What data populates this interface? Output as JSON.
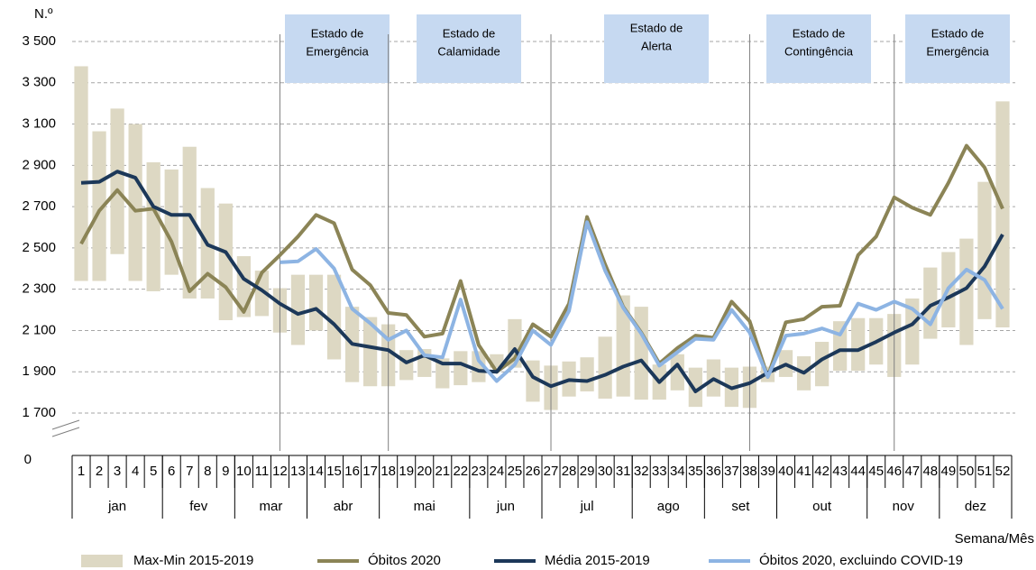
{
  "chart_data": {
    "type": "line",
    "y_label": "N.º",
    "x_label": "Semana/Mês",
    "x": [
      1,
      2,
      3,
      4,
      5,
      6,
      7,
      8,
      9,
      10,
      11,
      12,
      13,
      14,
      15,
      16,
      17,
      18,
      19,
      20,
      21,
      22,
      23,
      24,
      25,
      26,
      27,
      28,
      29,
      30,
      31,
      32,
      33,
      34,
      35,
      36,
      37,
      38,
      39,
      40,
      41,
      42,
      43,
      44,
      45,
      46,
      47,
      48,
      49,
      50,
      51,
      52
    ],
    "months": [
      {
        "label": "jan",
        "start": 1,
        "end": 5
      },
      {
        "label": "fev",
        "start": 6,
        "end": 9
      },
      {
        "label": "mar",
        "start": 10,
        "end": 13
      },
      {
        "label": "abr",
        "start": 14,
        "end": 17
      },
      {
        "label": "mai",
        "start": 18,
        "end": 22
      },
      {
        "label": "jun",
        "start": 23,
        "end": 26
      },
      {
        "label": "jul",
        "start": 27,
        "end": 31
      },
      {
        "label": "ago",
        "start": 32,
        "end": 35
      },
      {
        "label": "set",
        "start": 36,
        "end": 39
      },
      {
        "label": "out",
        "start": 40,
        "end": 44
      },
      {
        "label": "nov",
        "start": 45,
        "end": 48
      },
      {
        "label": "dez",
        "start": 49,
        "end": 52
      }
    ],
    "ylim": [
      1700,
      3500
    ],
    "yticks": [
      {
        "value": 1700,
        "label": "1 700"
      },
      {
        "value": 1900,
        "label": "1 900"
      },
      {
        "value": 2100,
        "label": "2 100"
      },
      {
        "value": 2300,
        "label": "2 300"
      },
      {
        "value": 2500,
        "label": "2 500"
      },
      {
        "value": 2700,
        "label": "2 700"
      },
      {
        "value": 2900,
        "label": "2 900"
      },
      {
        "value": 3100,
        "label": "3 100"
      },
      {
        "value": 3300,
        "label": "3 300"
      },
      {
        "value": 3500,
        "label": "3 500"
      }
    ],
    "y_origin_tick": 0,
    "grid": true,
    "range": {
      "name": "Max-Min 2015-2019",
      "color": "#ddd8c3",
      "low": [
        2340,
        2340,
        2470,
        2340,
        2290,
        2370,
        2255,
        2255,
        2150,
        2165,
        2170,
        2090,
        2030,
        2100,
        1960,
        1850,
        1830,
        1830,
        1860,
        1875,
        1820,
        1835,
        1850,
        1920,
        1920,
        1755,
        1715,
        1780,
        1805,
        1770,
        1780,
        1765,
        1765,
        1810,
        1730,
        1780,
        1730,
        1725,
        1850,
        1875,
        1810,
        1830,
        1905,
        1905,
        1935,
        1875,
        1935,
        2060,
        2115,
        2030,
        2155,
        2115
      ],
      "high": [
        3380,
        3065,
        3175,
        3100,
        2915,
        2880,
        2990,
        2790,
        2715,
        2460,
        2390,
        2305,
        2370,
        2370,
        2370,
        2215,
        2165,
        2130,
        2005,
        2010,
        1965,
        2000,
        2000,
        1985,
        2155,
        1955,
        1930,
        1950,
        1970,
        2070,
        2270,
        2215,
        1935,
        1985,
        1920,
        1960,
        1920,
        1925,
        1925,
        2005,
        1975,
        2045,
        2145,
        2160,
        2160,
        2180,
        2255,
        2405,
        2480,
        2545,
        2820,
        3210
      ]
    },
    "series": [
      {
        "name": "Óbitos 2020",
        "color": "#8b8456",
        "values": [
          2520,
          2680,
          2780,
          2680,
          2690,
          2530,
          2290,
          2375,
          2310,
          2190,
          2380,
          2465,
          2555,
          2660,
          2620,
          2395,
          2320,
          2185,
          2175,
          2070,
          2085,
          2340,
          2030,
          1900,
          1965,
          2130,
          2070,
          2230,
          2650,
          2420,
          2215,
          2090,
          1940,
          2015,
          2075,
          2065,
          2240,
          2145,
          1875,
          2140,
          2155,
          2215,
          2220,
          2465,
          2555,
          2745,
          2695,
          2660,
          2815,
          2995,
          2890,
          2690
        ]
      },
      {
        "name": "Média 2015-2019",
        "color": "#1c3859",
        "values": [
          2815,
          2820,
          2870,
          2840,
          2700,
          2660,
          2660,
          2515,
          2480,
          2350,
          2295,
          2230,
          2180,
          2205,
          2130,
          2035,
          2020,
          2005,
          1945,
          1980,
          1940,
          1940,
          1905,
          1900,
          2010,
          1875,
          1830,
          1860,
          1855,
          1885,
          1925,
          1955,
          1850,
          1935,
          1805,
          1865,
          1820,
          1845,
          1895,
          1935,
          1895,
          1960,
          2005,
          2005,
          2045,
          2090,
          2130,
          2220,
          2260,
          2305,
          2410,
          2565
        ]
      },
      {
        "name": "Óbitos 2020, excluindo COVID-19",
        "color": "#8db4e3",
        "values": [
          null,
          null,
          null,
          null,
          null,
          null,
          null,
          null,
          null,
          null,
          null,
          2430,
          2435,
          2495,
          2400,
          2205,
          2135,
          2055,
          2100,
          1980,
          1970,
          2250,
          1955,
          1855,
          1935,
          2100,
          2030,
          2195,
          2625,
          2390,
          2210,
          2085,
          1930,
          1995,
          2060,
          2055,
          2200,
          2090,
          1875,
          2075,
          2085,
          2110,
          2080,
          2230,
          2200,
          2240,
          2205,
          2130,
          2305,
          2395,
          2345,
          2205
        ]
      }
    ],
    "annotations": [
      {
        "lines": [
          "Estado de",
          "Emergência"
        ],
        "week": 12
      },
      {
        "lines": [
          "Estado de",
          "Calamidade"
        ],
        "week": 18
      },
      {
        "lines": [
          "Estado de",
          "Alerta"
        ],
        "week": 27
      },
      {
        "lines": [
          "Estado de",
          "Contingência"
        ],
        "week": 38
      },
      {
        "lines": [
          "Estado de",
          "Emergência"
        ],
        "week": 46
      }
    ]
  }
}
